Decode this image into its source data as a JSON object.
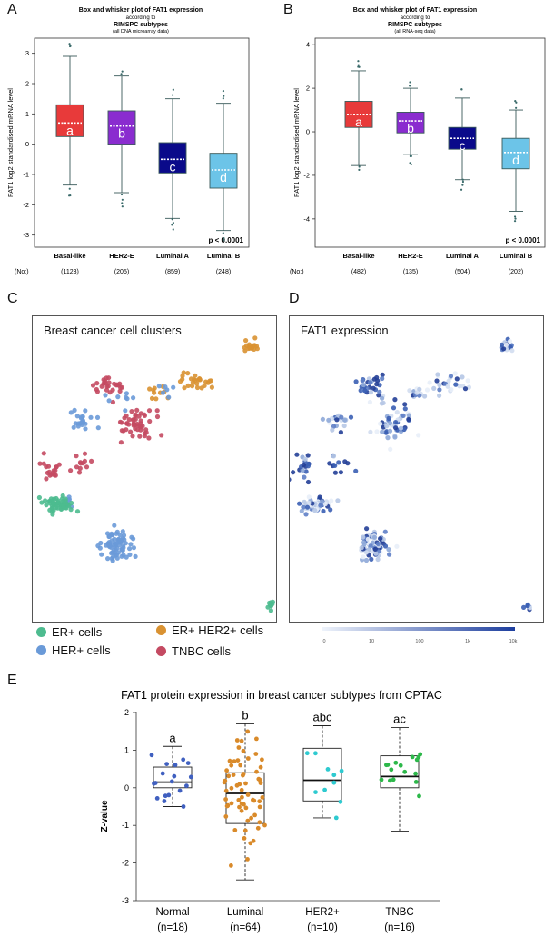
{
  "panels": {
    "a": "A",
    "b": "B",
    "c": "C",
    "d": "D",
    "e": "E"
  },
  "panelA": {
    "title_line1": "Box and whisker plot of FAT1 expression",
    "title_line2": "according to",
    "title_line3": "RIMSPC subtypes",
    "title_line4": "(all DNA microarray data)",
    "ylabel": "FAT1 log2 standardised mRNA level",
    "pvalue": "p < 0.0001",
    "no_label": "(No:)",
    "colors": [
      "#e83a3a",
      "#8a2ccf",
      "#0a0a8a",
      "#6cc4e8"
    ],
    "chart_data": {
      "type": "box",
      "categories": [
        "Basal-like",
        "HER2-E",
        "Luminal A",
        "Luminal B"
      ],
      "counts": [
        "(1123)",
        "(205)",
        "(859)",
        "(248)"
      ],
      "letters": [
        "a",
        "b",
        "c",
        "d"
      ],
      "ylim": [
        -3.4,
        3.5
      ],
      "yticks": [
        3,
        2,
        1,
        0,
        -1,
        -2,
        -3
      ],
      "boxes": [
        {
          "q1": 0.25,
          "median": 0.7,
          "q3": 1.3,
          "wlow": -1.35,
          "whigh": 2.9
        },
        {
          "q1": 0.0,
          "median": 0.6,
          "q3": 1.1,
          "wlow": -1.6,
          "whigh": 2.25
        },
        {
          "q1": -0.95,
          "median": -0.5,
          "q3": 0.05,
          "wlow": -2.45,
          "whigh": 1.5
        },
        {
          "q1": -1.45,
          "median": -0.85,
          "q3": -0.3,
          "wlow": -2.85,
          "whigh": 1.35
        }
      ]
    }
  },
  "panelB": {
    "title_line1": "Box and whisker plot of FAT1 expression",
    "title_line2": "according to",
    "title_line3": "RIMSPC subtypes",
    "title_line4": "(all RNA-seq data)",
    "ylabel": "FAT1 log2 standardised mRNA level",
    "pvalue": "p < 0.0001",
    "no_label": "(No:)",
    "colors": [
      "#e83a3a",
      "#8a2ccf",
      "#0a0a8a",
      "#6cc4e8"
    ],
    "chart_data": {
      "type": "box",
      "categories": [
        "Basal-like",
        "HER2-E",
        "Luminal A",
        "Luminal B"
      ],
      "counts": [
        "(482)",
        "(135)",
        "(504)",
        "(202)"
      ],
      "letters": [
        "a",
        "b",
        "c",
        "d"
      ],
      "ylim": [
        -5.3,
        4.3
      ],
      "yticks": [
        4,
        2,
        0,
        -2,
        -4
      ],
      "boxes": [
        {
          "q1": 0.2,
          "median": 0.8,
          "q3": 1.4,
          "wlow": -1.55,
          "whigh": 2.8
        },
        {
          "q1": -0.05,
          "median": 0.5,
          "q3": 0.9,
          "wlow": -1.05,
          "whigh": 2.0
        },
        {
          "q1": -0.8,
          "median": -0.3,
          "q3": 0.2,
          "wlow": -2.2,
          "whigh": 1.55
        },
        {
          "q1": -1.7,
          "median": -0.95,
          "q3": -0.3,
          "wlow": -3.65,
          "whigh": 1.0
        }
      ]
    }
  },
  "panelC": {
    "title": "Breast cancer cell clusters",
    "legend": [
      {
        "label": "ER+ cells",
        "color": "#4dbb8f"
      },
      {
        "label": "ER+ HER2+ cells",
        "color": "#d99232"
      },
      {
        "label": "HER+ cells",
        "color": "#6a9ad8"
      },
      {
        "label": "TNBC cells",
        "color": "#c44a62"
      }
    ]
  },
  "panelD": {
    "title": "FAT1 expression",
    "scale_labels": [
      "0",
      "10",
      "100",
      "1k",
      "10k"
    ]
  },
  "panelE": {
    "chart_data": {
      "type": "box",
      "title": "FAT1 protein expression in breast cancer subtypes from CPTAC",
      "ylabel": "Z-value",
      "categories": [
        "Normal",
        "Luminal",
        "HER2+",
        "TNBC"
      ],
      "counts": [
        "(n=18)",
        "(n=64)",
        "(n=10)",
        "(n=16)"
      ],
      "letters": [
        "a",
        "b",
        "abc",
        "ac"
      ],
      "colors": [
        "#4060c0",
        "#d98a2a",
        "#2ecad0",
        "#2db84a"
      ],
      "ylim": [
        -3,
        2
      ],
      "yticks": [
        2,
        1,
        0,
        -1,
        -2,
        -3
      ],
      "boxes": [
        {
          "q1": 0.0,
          "median": 0.15,
          "q3": 0.55,
          "wlow": -0.5,
          "whigh": 1.1
        },
        {
          "q1": -0.95,
          "median": -0.15,
          "q3": 0.4,
          "wlow": -2.45,
          "whigh": 1.7
        },
        {
          "q1": -0.35,
          "median": 0.2,
          "q3": 1.05,
          "wlow": -0.8,
          "whigh": 1.65
        },
        {
          "q1": 0.0,
          "median": 0.3,
          "q3": 0.85,
          "wlow": -1.15,
          "whigh": 1.6
        }
      ]
    }
  }
}
